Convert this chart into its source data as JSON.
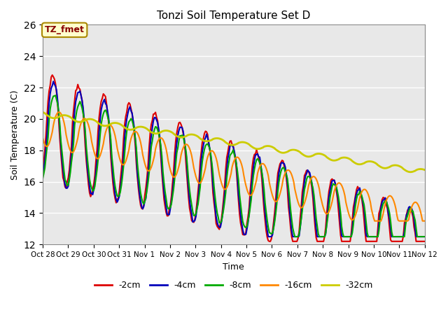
{
  "title": "Tonzi Soil Temperature Set D",
  "xlabel": "Time",
  "ylabel": "Soil Temperature (C)",
  "ylim": [
    12,
    26
  ],
  "yticks": [
    12,
    14,
    16,
    18,
    20,
    22,
    24,
    26
  ],
  "annotation_text": "TZ_fmet",
  "annotation_bg": "#ffffcc",
  "annotation_border": "#aa8800",
  "annotation_text_color": "#880000",
  "bg_color": "#e8e8e8",
  "plot_bg": "#e8e8e8",
  "series": {
    "-2cm": {
      "color": "#dd0000",
      "lw": 1.5
    },
    "-4cm": {
      "color": "#0000bb",
      "lw": 1.5
    },
    "-8cm": {
      "color": "#00aa00",
      "lw": 1.5
    },
    "-16cm": {
      "color": "#ff8800",
      "lw": 1.5
    },
    "-32cm": {
      "color": "#cccc00",
      "lw": 2.0
    }
  },
  "x_tick_labels": [
    "Oct 28",
    "Oct 29",
    "Oct 30",
    "Oct 31",
    "Nov 1",
    "Nov 2",
    "Nov 3",
    "Nov 4",
    "Nov 5",
    "Nov 6",
    "Nov 7",
    "Nov 8",
    "Nov 9",
    "Nov 10",
    "Nov 11",
    "Nov 12"
  ],
  "num_points": 360,
  "total_days": 15
}
